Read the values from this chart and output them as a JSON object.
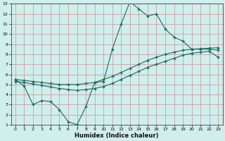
{
  "title": "",
  "xlabel": "Humidex (Indice chaleur)",
  "ylabel": "",
  "xlim": [
    -0.5,
    23.5
  ],
  "ylim": [
    1,
    13
  ],
  "xticks": [
    0,
    1,
    2,
    3,
    4,
    5,
    6,
    7,
    8,
    9,
    10,
    11,
    12,
    13,
    14,
    15,
    16,
    17,
    18,
    19,
    20,
    21,
    22,
    23
  ],
  "yticks": [
    1,
    2,
    3,
    4,
    5,
    6,
    7,
    8,
    9,
    10,
    11,
    12,
    13
  ],
  "bg_color": "#d0eeec",
  "grid_color": "#c8a0a0",
  "line_color": "#1a6a60",
  "line1_x": [
    0,
    1,
    2,
    3,
    4,
    5,
    6,
    7,
    8,
    9,
    10,
    11,
    12,
    13,
    14,
    15,
    16,
    17,
    18,
    19,
    20,
    21,
    22,
    23
  ],
  "line1_y": [
    5.5,
    4.85,
    3.0,
    3.4,
    3.3,
    2.5,
    1.3,
    1.0,
    2.8,
    5.2,
    5.3,
    8.5,
    11.0,
    13.2,
    12.5,
    11.8,
    12.0,
    10.5,
    9.7,
    9.3,
    8.5,
    8.5,
    8.5,
    8.4
  ],
  "line2_x": [
    0,
    1,
    2,
    3,
    4,
    5,
    6,
    7,
    8,
    9,
    10,
    11,
    12,
    13,
    14,
    15,
    16,
    17,
    18,
    19,
    20,
    21,
    22,
    23
  ],
  "line2_y": [
    5.5,
    5.4,
    5.3,
    5.2,
    5.1,
    5.0,
    5.0,
    5.0,
    5.1,
    5.2,
    5.5,
    5.8,
    6.2,
    6.6,
    7.0,
    7.4,
    7.7,
    8.0,
    8.2,
    8.4,
    8.5,
    8.55,
    8.6,
    8.65
  ],
  "line3_x": [
    0,
    1,
    2,
    3,
    4,
    5,
    6,
    7,
    8,
    9,
    10,
    11,
    12,
    13,
    14,
    15,
    16,
    17,
    18,
    19,
    20,
    21,
    22,
    23
  ],
  "line3_y": [
    5.3,
    5.2,
    5.05,
    4.9,
    4.75,
    4.6,
    4.5,
    4.4,
    4.5,
    4.6,
    4.8,
    5.1,
    5.5,
    5.9,
    6.3,
    6.7,
    7.0,
    7.3,
    7.6,
    7.9,
    8.1,
    8.2,
    8.3,
    7.7
  ]
}
